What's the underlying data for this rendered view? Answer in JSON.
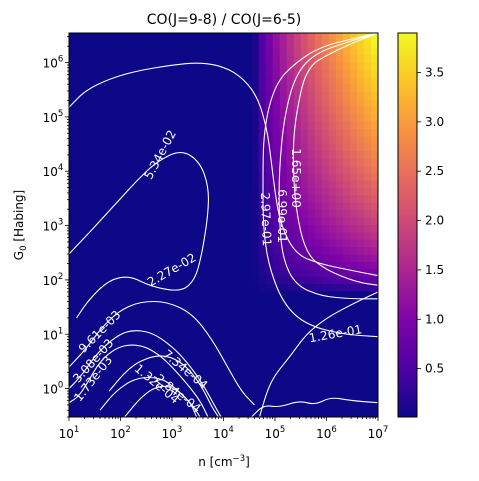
{
  "chart_data": {
    "type": "heatmap",
    "title": "CO(J=9-8) / CO(J=6-5)",
    "xlabel": "n [cm",
    "xlabel_sup": "−3",
    "xlabel_end": "]",
    "ylabel": "G",
    "ylabel_sub": "0",
    "ylabel_end": " [Habing]",
    "x_scale": "log",
    "y_scale": "log",
    "xlim": [
      10,
      10000000
    ],
    "ylim": [
      0.3,
      3500000
    ],
    "x_ticks": [
      {
        "value": 10,
        "base": "10",
        "exp": "1"
      },
      {
        "value": 100,
        "base": "10",
        "exp": "2"
      },
      {
        "value": 1000,
        "base": "10",
        "exp": "3"
      },
      {
        "value": 10000,
        "base": "10",
        "exp": "4"
      },
      {
        "value": 100000,
        "base": "10",
        "exp": "5"
      },
      {
        "value": 1000000,
        "base": "10",
        "exp": "6"
      },
      {
        "value": 10000000,
        "base": "10",
        "exp": "7"
      }
    ],
    "y_ticks": [
      {
        "value": 1,
        "base": "10",
        "exp": "0"
      },
      {
        "value": 10,
        "base": "10",
        "exp": "1"
      },
      {
        "value": 100,
        "base": "10",
        "exp": "2"
      },
      {
        "value": 1000,
        "base": "10",
        "exp": "3"
      },
      {
        "value": 10000,
        "base": "10",
        "exp": "4"
      },
      {
        "value": 100000,
        "base": "10",
        "exp": "5"
      },
      {
        "value": 1000000,
        "base": "10",
        "exp": "6"
      }
    ],
    "colorbar": {
      "colormap": "plasma",
      "range": [
        0.01,
        3.9
      ],
      "ticks": [
        "0.5",
        "1.0",
        "1.5",
        "2.0",
        "2.5",
        "3.0",
        "3.5"
      ],
      "tick_values": [
        0.5,
        1.0,
        1.5,
        2.0,
        2.5,
        3.0,
        3.5
      ]
    },
    "contours": [
      {
        "level": 0.00173,
        "label": "1.73e-03",
        "label_at": [
          30,
          1.5
        ],
        "label_angle": -52,
        "path": [
          [
            10,
            0.55
          ],
          [
            15,
            0.7
          ],
          [
            22,
            1.2
          ],
          [
            40,
            3.2
          ],
          [
            80,
            5.5
          ],
          [
            150,
            6.5
          ],
          [
            300,
            6
          ],
          [
            600,
            4
          ],
          [
            1000,
            2.5
          ],
          [
            2000,
            1.2
          ],
          [
            3500,
            0.6
          ],
          [
            5000,
            0.3
          ]
        ]
      },
      {
        "level": 0.00308,
        "label": "3.08e-03",
        "label_at": [
          30,
          3.2
        ],
        "label_angle": -48,
        "path": [
          [
            10,
            1.0
          ],
          [
            18,
            1.8
          ],
          [
            35,
            4.5
          ],
          [
            80,
            9
          ],
          [
            160,
            12
          ],
          [
            400,
            11
          ],
          [
            1000,
            6
          ],
          [
            2000,
            3
          ],
          [
            4000,
            1.2
          ],
          [
            7000,
            0.45
          ],
          [
            9000,
            0.3
          ]
        ]
      },
      {
        "level": 0.00961,
        "label": "9.61e-03",
        "label_at": [
          40,
          11
        ],
        "label_angle": -45,
        "path": [
          [
            10,
            2.5
          ],
          [
            20,
            5
          ],
          [
            45,
            14
          ],
          [
            100,
            28
          ],
          [
            250,
            40
          ],
          [
            800,
            40
          ],
          [
            2500,
            24
          ],
          [
            6000,
            8
          ],
          [
            12000,
            2.5
          ],
          [
            22000,
            0.9
          ],
          [
            40000,
            0.5
          ]
        ]
      },
      {
        "level": 0.0227,
        "label": "2.27e-02",
        "label_at": [
          1000,
          150
        ],
        "label_angle": -30,
        "path": [
          [
            10,
            300
          ],
          [
            30,
            900
          ],
          [
            80,
            2500
          ],
          [
            200,
            6500
          ],
          [
            500,
            15000
          ],
          [
            1500,
            25000
          ],
          [
            3500,
            15000
          ],
          [
            5200,
            5000
          ],
          [
            5000,
            1500
          ],
          [
            3800,
            300
          ],
          [
            2800,
            100
          ],
          [
            1500,
            60
          ],
          [
            400,
            75
          ],
          [
            150,
            120
          ],
          [
            60,
            100
          ],
          [
            25,
            45
          ],
          [
            14,
            20
          ]
        ]
      },
      {
        "level": 0.0534,
        "label": "5.34e-02",
        "label_at": [
          600,
          20000
        ],
        "label_angle": -62,
        "path": [
          [
            10,
            150000
          ],
          [
            20,
            300000
          ],
          [
            60,
            500000
          ],
          [
            200,
            700000
          ],
          [
            1000,
            900000
          ],
          [
            3000,
            1000000
          ],
          [
            8000,
            900000
          ],
          [
            20000,
            600000
          ],
          [
            45000,
            250000
          ],
          [
            70000,
            60000
          ],
          [
            85000,
            15000
          ],
          [
            100000,
            4000
          ],
          [
            130000,
            1000
          ],
          [
            250000,
            300
          ],
          [
            700000,
            200
          ],
          [
            3000000,
            150
          ],
          [
            10000000,
            120
          ]
        ]
      },
      {
        "level": 0.126,
        "label": "1.26e-01",
        "label_at": [
          1500000,
          10
        ],
        "label_angle": -10,
        "path": [
          [
            10000000,
            60
          ],
          [
            3000000,
            35
          ],
          [
            1000000,
            20
          ],
          [
            400000,
            10
          ],
          [
            200000,
            4
          ],
          [
            100000,
            1.8
          ],
          [
            70000,
            0.9
          ],
          [
            50000,
            0.3
          ]
        ]
      },
      {
        "level": 0.297,
        "label": "2.97e-01",
        "label_at": [
          65000,
          1300
        ],
        "label_angle": 88,
        "path": [
          [
            10000000,
            3500000
          ],
          [
            5000000,
            3000000
          ],
          [
            800000,
            2000000
          ],
          [
            250000,
            1000000
          ],
          [
            100000,
            400000
          ],
          [
            60000,
            60000
          ],
          [
            58000,
            5000
          ],
          [
            60000,
            700
          ],
          [
            80000,
            150
          ],
          [
            150000,
            35
          ],
          [
            400000,
            15
          ],
          [
            2000000,
            10
          ],
          [
            10000000,
            9
          ]
        ]
      },
      {
        "level": 0.699,
        "label": "6.99e-01",
        "label_at": [
          135000,
          1500
        ],
        "label_angle": 90,
        "path": [
          [
            10000000,
            3500000
          ],
          [
            3000000,
            2500000
          ],
          [
            600000,
            1500000
          ],
          [
            250000,
            600000
          ],
          [
            150000,
            100000
          ],
          [
            120000,
            10000
          ],
          [
            120000,
            1500
          ],
          [
            140000,
            250
          ],
          [
            250000,
            80
          ],
          [
            800000,
            50
          ],
          [
            3000000,
            45
          ],
          [
            10000000,
            45
          ]
        ]
      },
      {
        "level": 1.65,
        "label": "1.65e+00",
        "label_at": [
          250000,
          7500
        ],
        "label_angle": 90,
        "path": [
          [
            10000000,
            3500000
          ],
          [
            4000000,
            2500000
          ],
          [
            1200000,
            1500000
          ],
          [
            400000,
            800000
          ],
          [
            250000,
            100000
          ],
          [
            220000,
            20000
          ],
          [
            250000,
            2000
          ],
          [
            400000,
            300
          ],
          [
            1000000,
            150
          ],
          [
            4000000,
            90
          ],
          [
            10000000,
            80
          ]
        ]
      },
      {
        "level": 0.000734,
        "label": "7.34e-04",
        "label_at": [
          1800,
          2.2
        ],
        "label_angle": 40,
        "path": [
          [
            60,
            0.9
          ],
          [
            150,
            2.5
          ],
          [
            400,
            4
          ],
          [
            900,
            4
          ],
          [
            2000,
            2.5
          ],
          [
            4000,
            1.0
          ],
          [
            6000,
            0.45
          ],
          [
            8000,
            0.3
          ]
        ]
      },
      {
        "level": 0.000132,
        "label": "1.32e-04",
        "label_at": [
          500,
          1.2
        ],
        "label_angle": 40,
        "path": [
          [
            40,
            0.4
          ],
          [
            80,
            0.9
          ],
          [
            200,
            1.6
          ],
          [
            600,
            1.6
          ],
          [
            1200,
            1.0
          ],
          [
            2500,
            0.5
          ],
          [
            3500,
            0.3
          ]
        ]
      },
      {
        "level": 0.000284,
        "label": "2.84e-04",
        "label_at": [
          1300,
          0.8
        ],
        "label_angle": 38,
        "path": [
          [
            120,
            0.3
          ],
          [
            250,
            0.7
          ],
          [
            500,
            1.1
          ],
          [
            1000,
            1.1
          ],
          [
            2200,
            0.6
          ],
          [
            3000,
            0.3
          ]
        ]
      },
      {
        "level": 0.22,
        "label": "",
        "label_at": null,
        "label_angle": 0,
        "path": [
          [
            35000,
            0.3
          ],
          [
            60000,
            0.5
          ],
          [
            120000,
            0.45
          ],
          [
            300000,
            0.6
          ],
          [
            600000,
            0.5
          ],
          [
            1200000,
            0.7
          ],
          [
            3000000,
            0.6
          ],
          [
            10000000,
            0.55
          ]
        ]
      }
    ]
  }
}
